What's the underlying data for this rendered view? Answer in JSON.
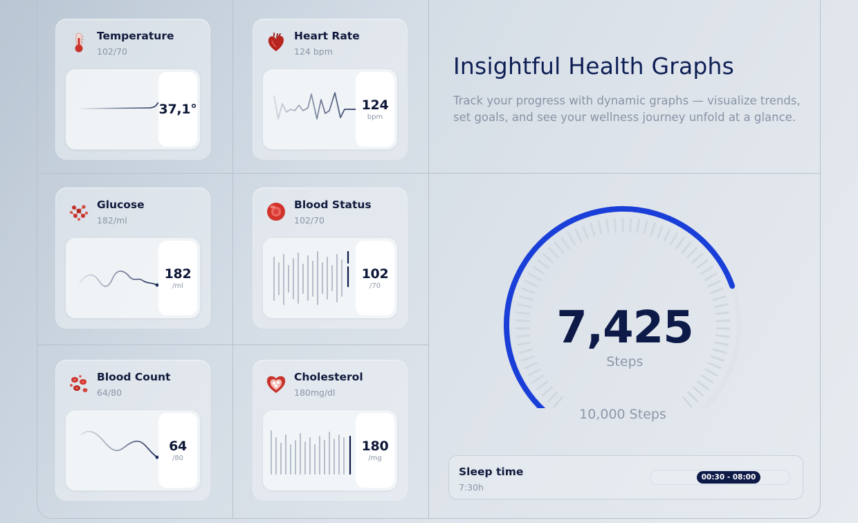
{
  "cards": [
    {
      "title": "Temperature",
      "sub": "102/70",
      "value": "37,1°",
      "unit": "",
      "icon": "thermometer-icon"
    },
    {
      "title": "Heart Rate",
      "sub": "124 bpm",
      "value": "124",
      "unit": "bpm",
      "icon": "heart-organ-icon"
    },
    {
      "title": "Glucose",
      "sub": "182/ml",
      "value": "182",
      "unit": "/ml",
      "icon": "glucose-molecule-icon"
    },
    {
      "title": "Blood Status",
      "sub": "102/70",
      "value": "102",
      "unit": "/70",
      "icon": "blood-cell-icon"
    },
    {
      "title": "Blood Count",
      "sub": "64/80",
      "value": "64",
      "unit": "/80",
      "icon": "blood-cells-icon"
    },
    {
      "title": "Cholesterol",
      "sub": "180mg/dl",
      "value": "180",
      "unit": "/mg",
      "icon": "heart-pills-icon"
    }
  ],
  "intro": {
    "headline": "Insightful Health Graphs",
    "description": "Track your progress with dynamic graphs — visualize trends, set goals, and see your wellness journey unfold at a glance."
  },
  "steps": {
    "value": "7,425",
    "label": "Steps",
    "goal": "10,000 Steps",
    "progress": 0.7425,
    "accent": "#1a3fd8"
  },
  "sleep": {
    "title": "Sleep time",
    "duration": "7:30h",
    "range": "00:30 - 08:00"
  }
}
